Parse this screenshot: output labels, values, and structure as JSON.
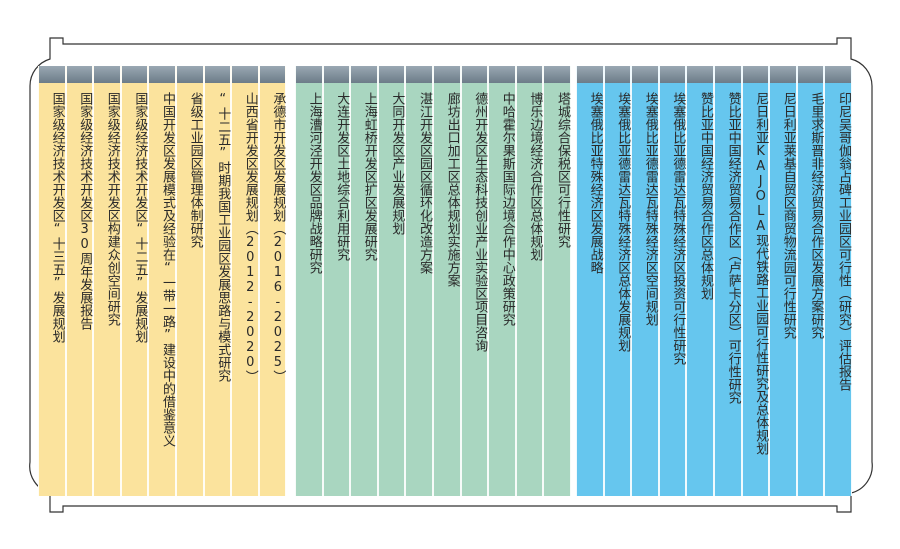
{
  "groups": [
    {
      "color": "#fbe39d",
      "items": [
        "国家级经济技术开发区“十三五”发展规划",
        "国家级经济技术开发区30周年发展报告",
        "国家级经济技术开发区构建众创空间研究",
        "国家级经济技术开发区“十二五”发展规划",
        "中国开发区发展模式及经验在“一带一路”建设中的借鉴意义",
        "省级工业园区管理体制研究",
        "“十二五”时期我国工业园区发展思路与模式研究",
        "山西省开发区发展规划（2012-2020）",
        "承德市开发区发展规划（2016-2025）"
      ]
    },
    {
      "color": "#a9d6c0",
      "items": [
        "上海漕河泾开发区品牌战略研究",
        "大连开发区土地综合利用研究",
        "上海虹桥开发区扩区发展研究",
        "大同开发区产业发展规划",
        "湛江开发区园区循环化改造方案",
        "廊坊出口加工区总体规划实施方案",
        "德州开发区生态科技创业产业实验区项目咨询",
        "中哈霍尔果斯国际边境合作中心政策研究",
        "博乐边境经济合作区总体规划",
        "塔城综合保税区可行性研究"
      ]
    },
    {
      "color": "#66c6ee",
      "items": [
        "埃塞俄比亚特殊经济区发展战略",
        "埃塞俄比亚德雷达瓦特殊经济区总体发展规划",
        "埃塞俄比亚德雷达瓦特殊经济区空间规划",
        "埃塞俄比亚德雷达瓦特殊经济区投资可行性研究",
        "赞比亚中国经济贸易合作区总体规划",
        "赞比亚中国经济贸易合作区（卢萨卡分区）可行性研究",
        "尼日利亚KAJOLA现代铁路工业园可行性研究及总体规划",
        "尼日利亚莱基自贸区商贸物流园可行性研究",
        "毛里求斯晋非经济贸易合作区发展方案研究",
        "印尼吴哥伽翁占碑工业园区可行性（研究）评估报告"
      ]
    }
  ]
}
